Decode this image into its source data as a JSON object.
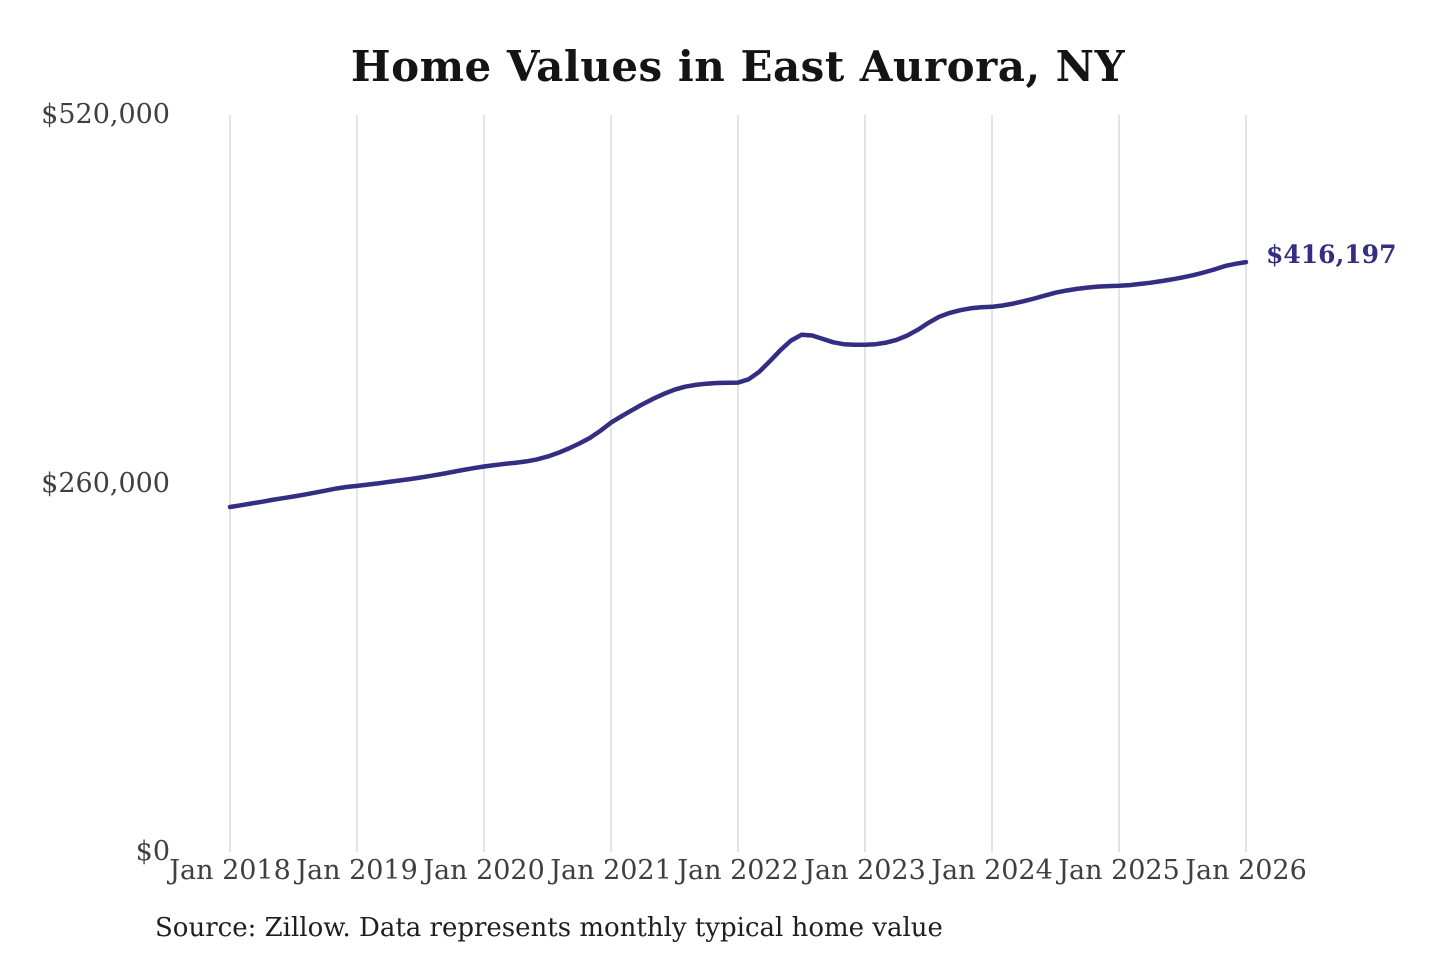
{
  "colors": {
    "background": "#ffffff",
    "line": "#332e82",
    "grid": "#c9c9c9",
    "tick_text": "#3f3f3f",
    "title_text": "#141414",
    "source_text": "#1f1f1f"
  },
  "chart_data": {
    "type": "line",
    "title": "Home Values in East Aurora, NY",
    "source": "Source: Zillow. Data represents monthly typical home value",
    "end_value_label": "$416,197",
    "xlabel": "",
    "ylabel": "",
    "ylim": [
      0,
      520000
    ],
    "grid": "vertical-only",
    "legend": "none",
    "frequency": "monthly",
    "x_range": [
      "Jan 2018",
      "Jan 2026"
    ],
    "x_tick_labels": [
      "Jan 2018",
      "Jan 2019",
      "Jan 2020",
      "Jan 2021",
      "Jan 2022",
      "Jan 2023",
      "Jan 2024",
      "Jan 2025",
      "Jan 2026"
    ],
    "y_ticks": [
      {
        "label": "$0",
        "value": 0
      },
      {
        "label": "$260,000",
        "value": 260000
      },
      {
        "label": "$520,000",
        "value": 520000
      }
    ],
    "series": [
      {
        "name": "Typical home value",
        "start": "Jan 2018",
        "end": "Jan 2026",
        "values": [
          243400,
          244600,
          245900,
          247100,
          248400,
          249600,
          250800,
          252100,
          253500,
          254900,
          256400,
          257500,
          258300,
          259200,
          260100,
          261100,
          262100,
          263100,
          264200,
          265400,
          266700,
          268100,
          269500,
          270800,
          272000,
          273000,
          273900,
          274700,
          275600,
          277000,
          279000,
          281600,
          284700,
          288200,
          292100,
          297200,
          303000,
          307500,
          311800,
          316000,
          319800,
          323200,
          326200,
          328300,
          329600,
          330400,
          330900,
          331100,
          331200,
          333500,
          338800,
          346200,
          354000,
          360800,
          364900,
          364400,
          362000,
          359600,
          358300,
          357900,
          357900,
          358300,
          359400,
          361400,
          364400,
          368500,
          373400,
          377600,
          380400,
          382300,
          383600,
          384300,
          384700,
          385600,
          386900,
          388600,
          390500,
          392600,
          394600,
          396100,
          397300,
          398200,
          398900,
          399300,
          399500,
          400000,
          400800,
          401700,
          402800,
          404000,
          405400,
          407000,
          408900,
          411000,
          413400,
          415000,
          416197
        ]
      }
    ]
  }
}
